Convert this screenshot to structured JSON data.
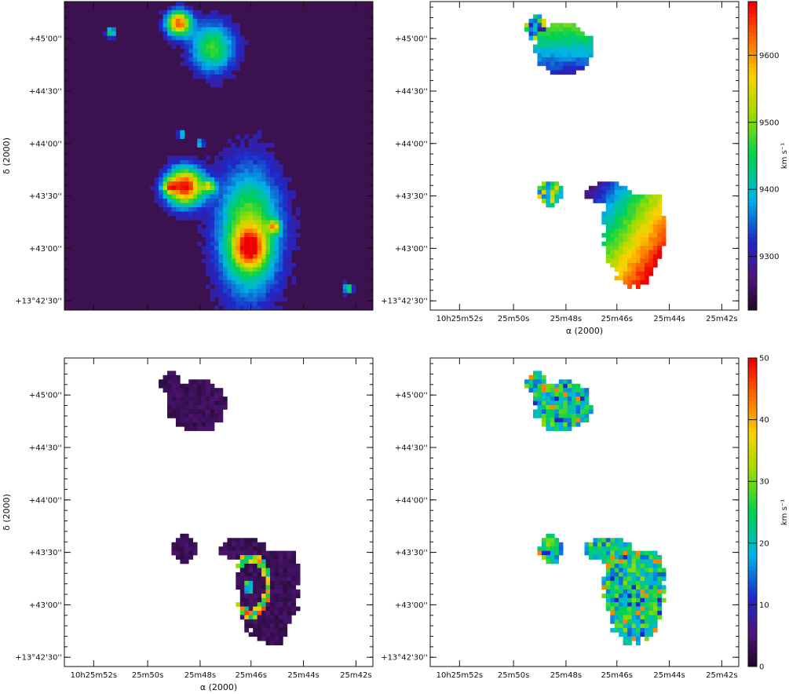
{
  "chart_data": [
    {
      "type": "heatmap",
      "panel": "top-left",
      "title": "",
      "xlabel": "",
      "ylabel": "δ (2000)",
      "x_ticks": [
        "",
        "",
        "",
        "",
        "",
        ""
      ],
      "y_ticks": [
        "+45'00''",
        "+44'30''",
        "+44'00''",
        "+43'30''",
        "+43'00''",
        "+13°42'30''"
      ],
      "colormap": "rainbow",
      "background": "#3b1150",
      "features": [
        {
          "kind": "galaxy",
          "ra": "10h25m46s",
          "dec": "+13°43'00''"
        },
        {
          "kind": "galaxy",
          "ra": "10h25m49s",
          "dec": "+13°43'40''"
        },
        {
          "kind": "galaxy",
          "ra": "10h25m48.5s",
          "dec": "+13°44'58''"
        },
        {
          "kind": "galaxy",
          "ra": "10h25m49.5s",
          "dec": "+13°45'15''"
        }
      ]
    },
    {
      "type": "heatmap",
      "panel": "top-right",
      "title": "",
      "xlabel": "α (2000)",
      "ylabel": "",
      "x_ticks": [
        "10h25m52s",
        "25m50s",
        "25m48s",
        "25m46s",
        "25m44s",
        "25m42s"
      ],
      "y_ticks": [
        "+45'00''",
        "+44'30''",
        "+44'00''",
        "+43'30''",
        "+43'00''",
        "+13°42'30''"
      ],
      "colorbar": {
        "label": "km s⁻¹",
        "min": 9220,
        "max": 9680,
        "ticks": [
          9300,
          9400,
          9500,
          9600
        ]
      },
      "colormap": "rainbow",
      "pattern": "velocity-gradient"
    },
    {
      "type": "heatmap",
      "panel": "bottom-left",
      "title": "",
      "xlabel": "α (2000)",
      "ylabel": "δ (2000)",
      "x_ticks": [
        "10h25m52s",
        "25m50s",
        "25m48s",
        "25m46s",
        "25m44s",
        "25m42s"
      ],
      "y_ticks": [
        "+45'00''",
        "+44'30''",
        "+44'00''",
        "+43'30''",
        "+43'00''",
        "+13°42'30''"
      ],
      "colormap": "rainbow",
      "pattern": "dark-with-arm"
    },
    {
      "type": "heatmap",
      "panel": "bottom-right",
      "title": "",
      "xlabel": "",
      "ylabel": "",
      "x_ticks": [
        "10h25m52s",
        "25m50s",
        "25m48s",
        "25m46s",
        "25m44s",
        "25m42s"
      ],
      "y_ticks": [
        "+45'00''",
        "+44'30''",
        "+44'00''",
        "+43'30''",
        "+43'00''",
        "+13°42'30''"
      ],
      "colorbar": {
        "label": "km s⁻¹",
        "min": 0,
        "max": 50,
        "ticks": [
          0,
          10,
          20,
          30,
          40,
          50
        ]
      },
      "colormap": "rainbow",
      "pattern": "dispersion"
    }
  ]
}
